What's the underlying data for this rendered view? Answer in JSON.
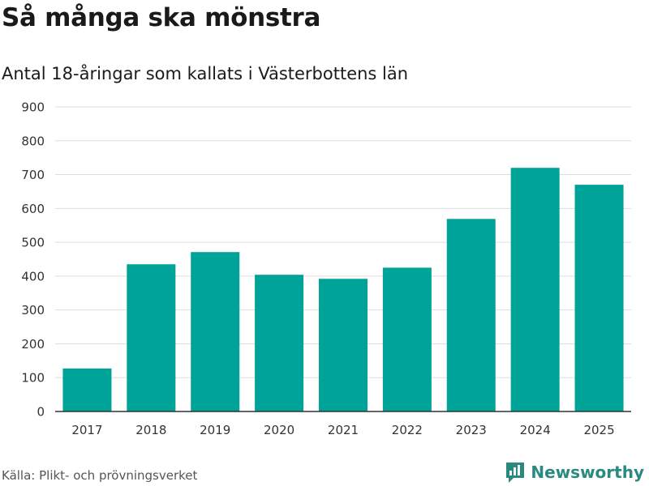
{
  "header": {
    "title": "Så många ska mönstra",
    "subtitle": "Antal 18-åringar som kallats i Västerbottens län"
  },
  "footer": {
    "source": "Källa: Plikt- och prövningsverket",
    "brand": "Newsworthy"
  },
  "colors": {
    "bar": "#00a398",
    "brand": "#2a8a80",
    "grid": "#dddddd",
    "axis": "#333333",
    "tick_text": "#333333"
  },
  "chart_data": {
    "type": "bar",
    "title": "Så många ska mönstra",
    "subtitle": "Antal 18-åringar som kallats i Västerbottens län",
    "xlabel": "",
    "ylabel": "",
    "categories": [
      "2017",
      "2018",
      "2019",
      "2020",
      "2021",
      "2022",
      "2023",
      "2024",
      "2025"
    ],
    "values": [
      127,
      435,
      471,
      404,
      392,
      425,
      569,
      720,
      670
    ],
    "ylim": [
      0,
      900
    ],
    "yticks": [
      0,
      100,
      200,
      300,
      400,
      500,
      600,
      700,
      800,
      900
    ],
    "grid": true,
    "legend": "none"
  }
}
